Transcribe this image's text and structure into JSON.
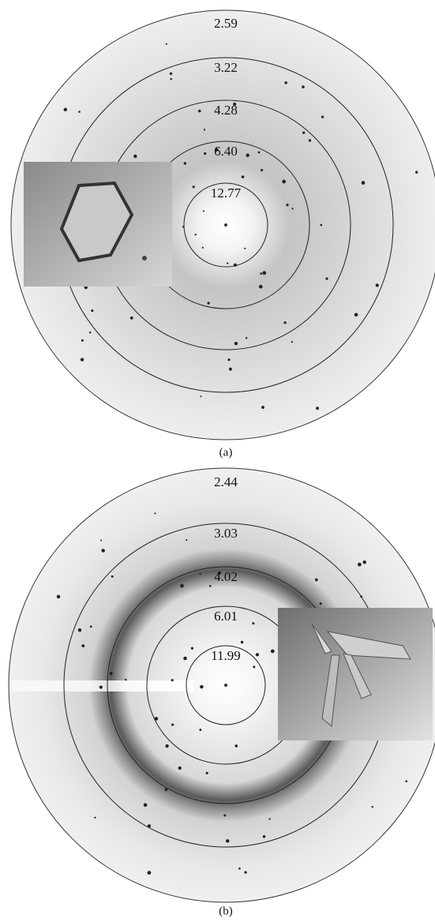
{
  "figure": {
    "panels": [
      {
        "label": "(a)",
        "rings": [
          "2.59",
          "3.22",
          "4.28",
          "6.40",
          "12.77"
        ]
      },
      {
        "label": "(b)",
        "rings": [
          "2.44",
          "3.03",
          "4.02",
          "6.01",
          "11.99"
        ]
      }
    ]
  }
}
